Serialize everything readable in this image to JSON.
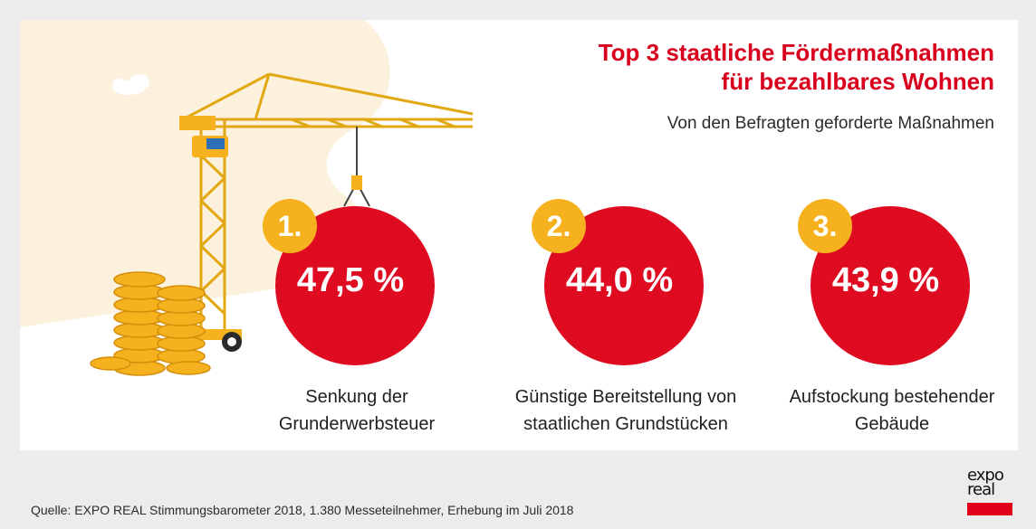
{
  "colors": {
    "brand_red": "#de0b21",
    "rank_yellow": "#f5b21e",
    "title_red": "#d8001c",
    "blob": "#fbf1dc"
  },
  "title_line1": "Top 3 staatliche Fördermaßnahmen",
  "title_line2": "für bezahlbares Wohnen",
  "subtitle": "Von den Befragten geforderte Maßnahmen",
  "metrics": [
    {
      "rank": "1.",
      "value": "47,5 %",
      "label_line1": "Senkung der",
      "label_line2": "Grunderwerbsteuer"
    },
    {
      "rank": "2.",
      "value": "44,0 %",
      "label_line1": "Günstige Bereitstellung von",
      "label_line2": "staatlichen Grundstücken"
    },
    {
      "rank": "3.",
      "value": "43,9 %",
      "label_line1": "Aufstockung bestehender",
      "label_line2": "Gebäude"
    }
  ],
  "source": "Quelle: EXPO REAL Stimmungsbarometer 2018, 1.380 Messeteilnehmer, Erhebung im Juli 2018",
  "logo": {
    "line1": "expo",
    "line2": "real"
  },
  "icons": [
    "crane-illustration",
    "coin-stacks-illustration",
    "cloud-icon"
  ]
}
